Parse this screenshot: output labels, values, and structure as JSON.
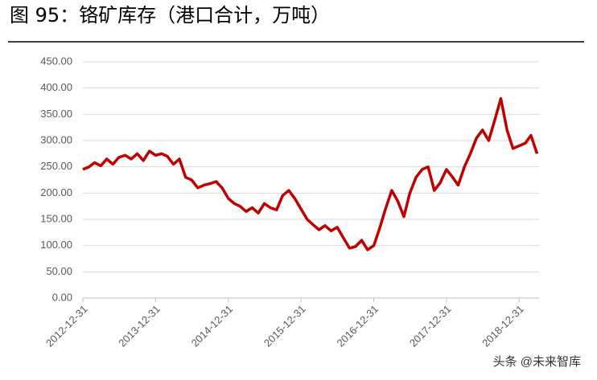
{
  "chart_data": {
    "type": "line",
    "title": "图 95：铬矿库存（港口合计，万吨）",
    "watermark": "头条 @未来智库",
    "x": [
      "2012-12-31",
      "2013-01-31",
      "2013-02-28",
      "2013-03-31",
      "2013-04-30",
      "2013-05-31",
      "2013-06-30",
      "2013-07-31",
      "2013-08-31",
      "2013-09-30",
      "2013-10-31",
      "2013-11-30",
      "2013-12-31",
      "2014-01-31",
      "2014-02-28",
      "2014-03-31",
      "2014-04-30",
      "2014-05-31",
      "2014-06-30",
      "2014-07-31",
      "2014-08-31",
      "2014-09-30",
      "2014-10-31",
      "2014-11-30",
      "2014-12-31",
      "2015-01-31",
      "2015-02-28",
      "2015-03-31",
      "2015-04-30",
      "2015-05-31",
      "2015-06-30",
      "2015-07-31",
      "2015-08-31",
      "2015-09-30",
      "2015-10-31",
      "2015-11-30",
      "2015-12-31",
      "2016-01-31",
      "2016-02-29",
      "2016-03-31",
      "2016-04-30",
      "2016-05-31",
      "2016-06-30",
      "2016-07-31",
      "2016-08-31",
      "2016-09-30",
      "2016-10-31",
      "2016-11-30",
      "2016-12-31",
      "2017-01-31",
      "2017-02-28",
      "2017-03-31",
      "2017-04-30",
      "2017-05-31",
      "2017-06-30",
      "2017-07-31",
      "2017-08-31",
      "2017-09-30",
      "2017-10-31",
      "2017-11-30",
      "2017-12-31",
      "2018-01-31",
      "2018-02-28",
      "2018-03-31",
      "2018-04-30",
      "2018-05-31",
      "2018-06-30",
      "2018-07-31",
      "2018-08-31",
      "2018-09-30",
      "2018-10-31",
      "2018-11-30",
      "2018-12-31",
      "2019-01-31",
      "2019-02-28",
      "2019-03-31"
    ],
    "series": [
      {
        "color": "#c00000",
        "values": [
          245,
          250,
          258,
          252,
          265,
          255,
          268,
          272,
          265,
          275,
          262,
          280,
          272,
          275,
          270,
          255,
          265,
          230,
          225,
          210,
          215,
          218,
          222,
          210,
          190,
          180,
          175,
          165,
          172,
          162,
          180,
          172,
          168,
          195,
          205,
          190,
          170,
          150,
          140,
          130,
          138,
          128,
          135,
          115,
          95,
          98,
          110,
          92,
          100,
          135,
          170,
          205,
          185,
          155,
          200,
          230,
          245,
          250,
          205,
          220,
          245,
          230,
          215,
          250,
          275,
          305,
          320,
          300,
          340,
          380,
          320,
          285,
          290,
          295,
          310,
          275
        ]
      }
    ],
    "xlim": [
      "2012-12-31",
      "2019-04-10"
    ],
    "xticks": [
      "2012-12-31",
      "2013-12-31",
      "2014-12-31",
      "2015-12-31",
      "2016-12-31",
      "2017-12-31",
      "2018-12-31"
    ],
    "ylim": [
      0,
      450
    ],
    "yticks": [
      {
        "value": 0,
        "label": "0.00"
      },
      {
        "value": 50,
        "label": "50.00"
      },
      {
        "value": 100,
        "label": "100.00"
      },
      {
        "value": 150,
        "label": "150.00"
      },
      {
        "value": 200,
        "label": "200.00"
      },
      {
        "value": 250,
        "label": "250.00"
      },
      {
        "value": 300,
        "label": "300.00"
      },
      {
        "value": 350,
        "label": "350.00"
      },
      {
        "value": 400,
        "label": "400.00"
      },
      {
        "value": 450,
        "label": "450.00"
      }
    ],
    "grid": true
  }
}
